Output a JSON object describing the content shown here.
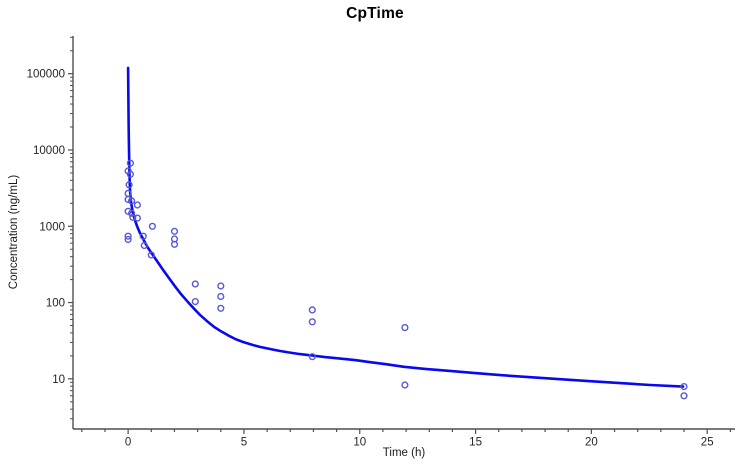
{
  "chart_data": {
    "type": "scatter",
    "title": "CpTime",
    "xlabel": "Time (h)",
    "ylabel": "Concentration (ng/mL)",
    "x_scale": "linear",
    "y_scale": "log",
    "grid": false,
    "legend": false,
    "xlim": [
      -2.38,
      26.2
    ],
    "ylim": [
      2.2,
      312000
    ],
    "x_major_ticks": [
      {
        "value": 0,
        "label": "0"
      },
      {
        "value": 5,
        "label": "5"
      },
      {
        "value": 10,
        "label": "10"
      },
      {
        "value": 15,
        "label": "15"
      },
      {
        "value": 20,
        "label": "20"
      },
      {
        "value": 25,
        "label": "25"
      }
    ],
    "x_minor_tick_step": 1,
    "y_major_ticks": [
      {
        "value": 10,
        "label": "10"
      },
      {
        "value": 100,
        "label": "100"
      },
      {
        "value": 1000,
        "label": "1000"
      },
      {
        "value": 10000,
        "label": "10000"
      },
      {
        "value": 100000,
        "label": "100000"
      }
    ],
    "colors": {
      "curve": "#0909f0",
      "marker": "#5659d8",
      "axis": "#4f4f4f",
      "tick_text": "#262626"
    },
    "series": [
      {
        "name": "observed",
        "style": "open-circle"
      },
      {
        "name": "predicted",
        "style": "line"
      }
    ],
    "observed_points": [
      [
        0.1,
        6700
      ],
      [
        0.0,
        5300
      ],
      [
        0.1,
        4800
      ],
      [
        0.04,
        3500
      ],
      [
        0.0,
        2700
      ],
      [
        0.0,
        2250
      ],
      [
        0.15,
        2150
      ],
      [
        0.4,
        1900
      ],
      [
        0.0,
        1570
      ],
      [
        0.15,
        1480
      ],
      [
        0.2,
        1310
      ],
      [
        0.4,
        1280
      ],
      [
        1.05,
        1000
      ],
      [
        0.65,
        740
      ],
      [
        0.0,
        740
      ],
      [
        0.0,
        670
      ],
      [
        0.7,
        560
      ],
      [
        2.0,
        860
      ],
      [
        2.0,
        680
      ],
      [
        2.0,
        580
      ],
      [
        1.0,
        420
      ],
      [
        2.9,
        175
      ],
      [
        2.9,
        103
      ],
      [
        4.0,
        165
      ],
      [
        4.0,
        120
      ],
      [
        4.0,
        84
      ],
      [
        7.95,
        80
      ],
      [
        7.95,
        56
      ],
      [
        7.95,
        19.5
      ],
      [
        11.95,
        47
      ],
      [
        11.95,
        8.3
      ],
      [
        24.0,
        7.9
      ],
      [
        24.0,
        6.0
      ]
    ],
    "fitted_curve": [
      [
        0,
        119000
      ],
      [
        0.013,
        45000
      ],
      [
        0.026,
        18000
      ],
      [
        0.04,
        8600
      ],
      [
        0.06,
        4700
      ],
      [
        0.08,
        3000
      ],
      [
        0.125,
        2080
      ],
      [
        0.19,
        1590
      ],
      [
        0.28,
        1250
      ],
      [
        0.38,
        1010
      ],
      [
        0.51,
        820
      ],
      [
        0.69,
        645
      ],
      [
        0.86,
        520
      ],
      [
        1.08,
        415
      ],
      [
        1.29,
        335
      ],
      [
        1.55,
        258
      ],
      [
        1.81,
        200
      ],
      [
        2.07,
        156
      ],
      [
        2.33,
        124
      ],
      [
        2.59,
        101
      ],
      [
        2.85,
        83
      ],
      [
        3.1,
        69
      ],
      [
        3.41,
        57
      ],
      [
        3.71,
        48
      ],
      [
        4.01,
        42
      ],
      [
        4.31,
        37.2
      ],
      [
        4.66,
        32.9
      ],
      [
        5.0,
        30.1
      ],
      [
        5.35,
        27.9
      ],
      [
        5.69,
        26.2
      ],
      [
        6.13,
        24.6
      ],
      [
        6.56,
        23.2
      ],
      [
        6.99,
        22.1
      ],
      [
        7.42,
        21.1
      ],
      [
        7.94,
        20.2
      ],
      [
        8.5,
        19.3
      ],
      [
        9.15,
        18.4
      ],
      [
        9.8,
        17.6
      ],
      [
        10.45,
        16.5
      ],
      [
        11.09,
        15.6
      ],
      [
        11.91,
        14.4
      ],
      [
        12.82,
        13.5
      ],
      [
        13.9,
        12.7
      ],
      [
        14.98,
        11.9
      ],
      [
        16.06,
        11.2
      ],
      [
        17.36,
        10.5
      ],
      [
        18.65,
        9.9
      ],
      [
        19.95,
        9.3
      ],
      [
        21.24,
        8.8
      ],
      [
        22.54,
        8.3
      ],
      [
        23.96,
        7.9
      ]
    ]
  }
}
